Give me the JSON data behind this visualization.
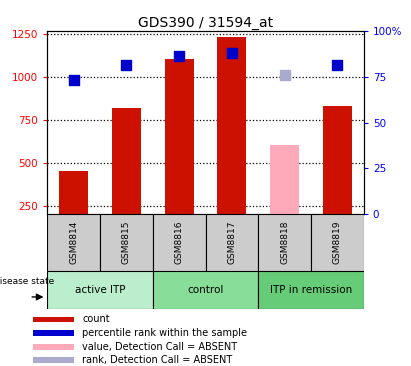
{
  "title": "GDS390 / 31594_at",
  "samples": [
    "GSM8814",
    "GSM8815",
    "GSM8816",
    "GSM8817",
    "GSM8818",
    "GSM8819"
  ],
  "bar_values": [
    450,
    820,
    1100,
    1230,
    null,
    830
  ],
  "bar_absent_values": [
    null,
    null,
    null,
    null,
    600,
    null
  ],
  "dot_values": [
    980,
    1070,
    1120,
    1140,
    null,
    1070
  ],
  "dot_absent_values": [
    null,
    null,
    null,
    null,
    1010,
    null
  ],
  "left_yticks": [
    250,
    500,
    750,
    1000,
    1250
  ],
  "right_yticks": [
    0,
    25,
    50,
    75,
    100
  ],
  "right_ytick_labels": [
    "0",
    "25",
    "50",
    "75",
    "100%"
  ],
  "ylim_left": [
    200,
    1265
  ],
  "ylim_right": [
    0,
    100
  ],
  "bar_color": "#cc1100",
  "bar_absent_color": "#ffaabb",
  "dot_color": "#0000cc",
  "dot_absent_color": "#aaaacc",
  "sample_box_color": "#cccccc",
  "legend_items": [
    {
      "label": "count",
      "color": "#cc1100"
    },
    {
      "label": "percentile rank within the sample",
      "color": "#0000cc"
    },
    {
      "label": "value, Detection Call = ABSENT",
      "color": "#ffaabb"
    },
    {
      "label": "rank, Detection Call = ABSENT",
      "color": "#aaaacc"
    }
  ],
  "disease_state_label": "disease state",
  "group_defs": [
    {
      "start": 0,
      "end": 1,
      "label": "active ITP",
      "color": "#bbeecc"
    },
    {
      "start": 2,
      "end": 3,
      "label": "control",
      "color": "#88dd99"
    },
    {
      "start": 4,
      "end": 5,
      "label": "ITP in remission",
      "color": "#66cc77"
    }
  ],
  "dot_size": 55,
  "bar_width": 0.55
}
